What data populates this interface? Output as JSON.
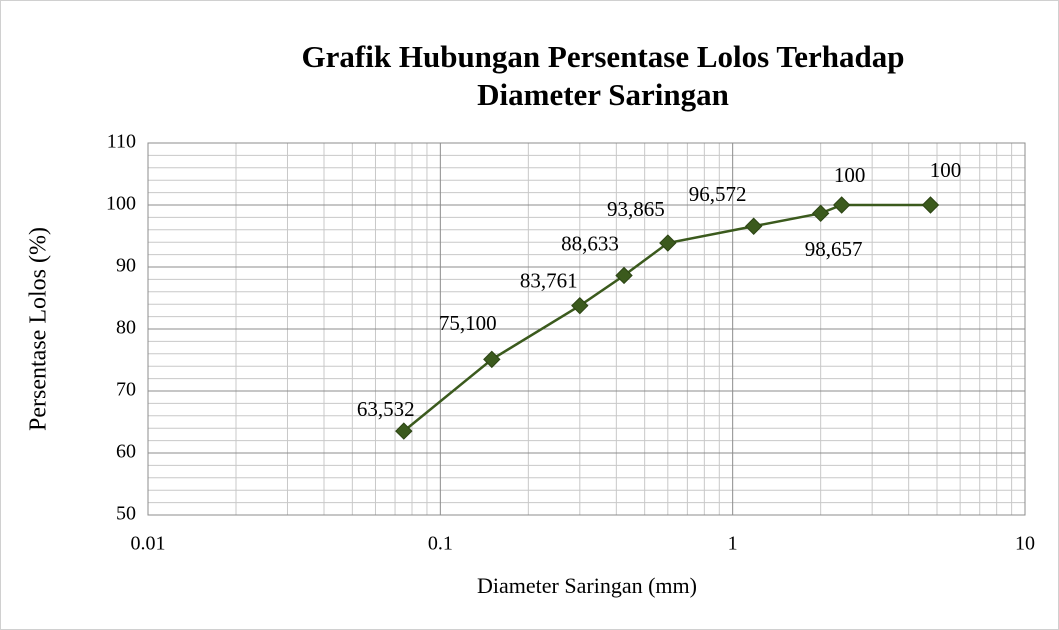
{
  "chart_data": {
    "type": "line",
    "title": "Grafik Hubungan Persentase Lolos Terhadap",
    "subtitle": "Diameter Saringan",
    "x_label": "Diameter Saringan (mm)",
    "y_label": "Persentase Lolos (%)",
    "x": [
      0.075,
      0.15,
      0.3,
      0.425,
      0.6,
      1.18,
      2,
      2.36,
      4.75
    ],
    "series": [
      {
        "name": "Persentase Lolos",
        "color": "#3b5a1d",
        "values": [
          63.532,
          75.1,
          83.761,
          88.633,
          93.865,
          96.572,
          98.657,
          100,
          100
        ],
        "value_labels": [
          "63,532",
          "75,100",
          "83,761",
          "88,633",
          "93,865",
          "96,572",
          "98,657",
          "100",
          "100"
        ]
      }
    ],
    "xlim": [
      0.01,
      10
    ],
    "xticks": [
      0.01,
      0.1,
      1,
      10
    ],
    "xscale": "log",
    "ylim": [
      50,
      110
    ],
    "yticks": [
      50,
      60,
      70,
      80,
      90,
      100,
      110
    ],
    "grid": true,
    "minor_grid": true
  }
}
